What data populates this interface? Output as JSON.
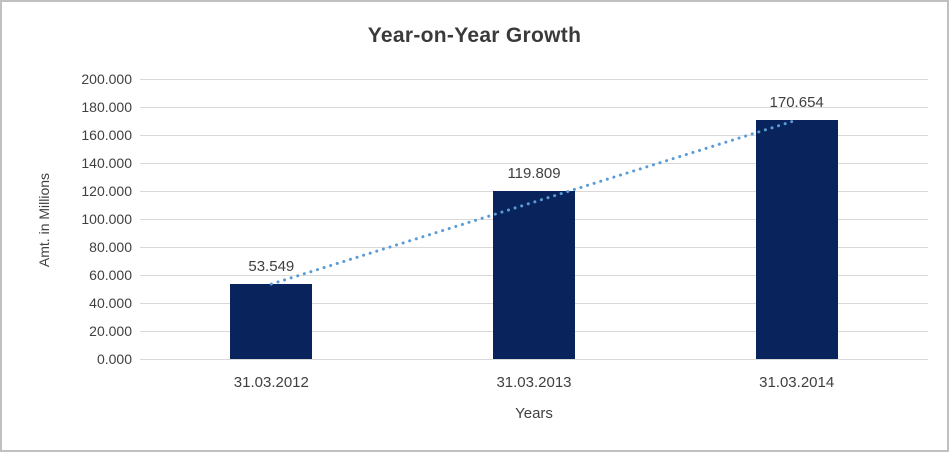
{
  "chart_data": {
    "type": "bar",
    "title": "Year-on-Year Growth",
    "xlabel": "Years",
    "ylabel": "Amt. in Millions",
    "categories": [
      "31.03.2012",
      "31.03.2013",
      "31.03.2014"
    ],
    "values": [
      53.549,
      119.809,
      170.654
    ],
    "data_labels": [
      "53.549",
      "119.809",
      "170.654"
    ],
    "ylim": [
      0,
      200
    ],
    "ytick_step": 20,
    "ytick_labels_top_to_bottom": [
      "200.000",
      "180.000",
      "160.000",
      "140.000",
      "120.000",
      "100.000",
      "80.000",
      "60.000",
      "40.000",
      "20.000",
      "0.000"
    ],
    "grid": true,
    "legend": "none",
    "trendline": {
      "style": "dotted",
      "from_category_index": 0,
      "to_category_index": 2,
      "color": "#5b9bd5"
    },
    "colors": {
      "bar": "#09245c",
      "trendline": "#5b9bd5",
      "gridline": "#d9d9d9",
      "text": "#404040",
      "title": "#3a3a3a",
      "border": "#c0c0c0",
      "background": "#ffffff"
    }
  }
}
